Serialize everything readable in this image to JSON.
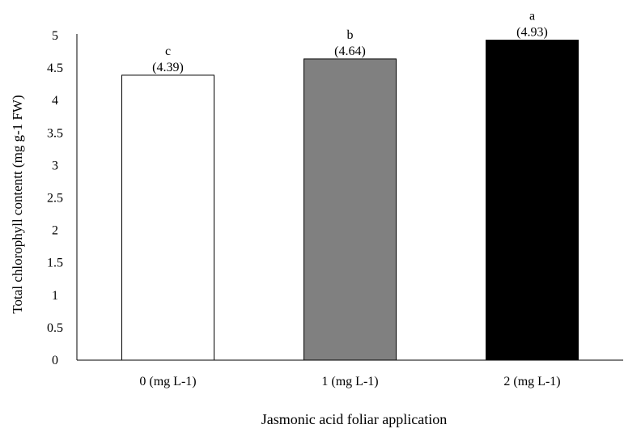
{
  "chart_data": {
    "type": "bar",
    "title": "",
    "xlabel": "Jasmonic acid foliar application",
    "ylabel": "Total chlorophyll contentt (mg g-1 FW)",
    "ylim": [
      0,
      5
    ],
    "yticks": [
      "0",
      "0.5",
      "1",
      "1.5",
      "2",
      "2.5",
      "3",
      "3.5",
      "4",
      "4.5",
      "5"
    ],
    "categories": [
      "0 (mg L-1)",
      "1 (mg L-1)",
      "2 (mg L-1)"
    ],
    "values": [
      4.39,
      4.64,
      4.93
    ],
    "value_labels": [
      "(4.39)",
      "(4.64)",
      "(4.93)"
    ],
    "letters": [
      "c",
      "b",
      "a"
    ],
    "bar_colors": [
      "#ffffff",
      "#808080",
      "#000000"
    ],
    "bar_edge_color": "#000000",
    "grid": false,
    "legend": "none"
  }
}
